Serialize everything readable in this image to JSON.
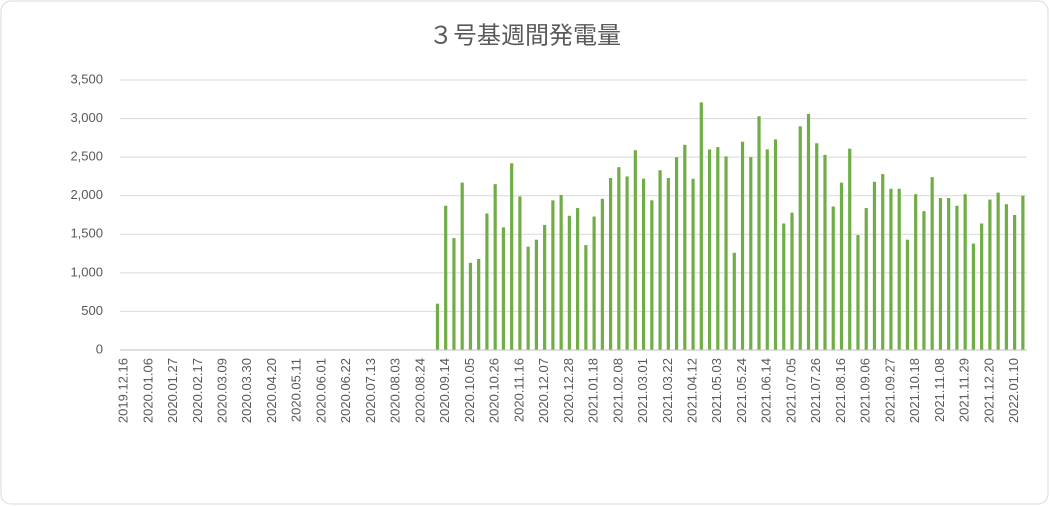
{
  "chart_data": {
    "type": "bar",
    "title": "３号基週間発電量",
    "categories": [
      "2019.12.16",
      null,
      null,
      "2020.01.06",
      null,
      null,
      "2020.01.27",
      null,
      null,
      "2020.02.17",
      null,
      null,
      "2020.03.09",
      null,
      null,
      "2020.03.30",
      null,
      null,
      "2020.04.20",
      null,
      null,
      "2020.05.11",
      null,
      null,
      "2020.06.01",
      null,
      null,
      "2020.06.22",
      null,
      null,
      "2020.07.13",
      null,
      null,
      "2020.08.03",
      null,
      null,
      "2020.08.24",
      null,
      null,
      "2020.09.14",
      null,
      null,
      "2020.10.05",
      null,
      null,
      "2020.10.26",
      null,
      null,
      "2020.11.16",
      null,
      null,
      "2020.12.07",
      null,
      null,
      "2020.12.28",
      null,
      null,
      "2021.01.18",
      null,
      null,
      "2021.02.08",
      null,
      null,
      "2021.03.01",
      null,
      null,
      "2021.03.22",
      null,
      null,
      "2021.04.12",
      null,
      null,
      "2021.05.03",
      null,
      null,
      "2021.05.24",
      null,
      null,
      "2021.06.14",
      null,
      null,
      "2021.07.05",
      null,
      null,
      "2021.07.26",
      null,
      null,
      "2021.08.16",
      null,
      null,
      "2021.09.06",
      null,
      null,
      "2021.09.27",
      null,
      null,
      "2021.10.18",
      null,
      null,
      "2021.11.08",
      null,
      null,
      "2021.11.29",
      null,
      null,
      "2021.12.20",
      null,
      null,
      "2022.01.10",
      null
    ],
    "values": [
      null,
      null,
      null,
      null,
      null,
      null,
      null,
      null,
      null,
      null,
      null,
      null,
      null,
      null,
      null,
      null,
      null,
      null,
      null,
      null,
      null,
      null,
      null,
      null,
      null,
      null,
      null,
      null,
      null,
      null,
      null,
      null,
      null,
      null,
      null,
      null,
      null,
      null,
      600,
      1870,
      1450,
      2170,
      1130,
      1180,
      1770,
      2150,
      1590,
      2420,
      1990,
      1340,
      1430,
      1620,
      1940,
      2010,
      1740,
      1840,
      1360,
      1730,
      1960,
      2230,
      2370,
      2250,
      2590,
      2220,
      1940,
      2330,
      2230,
      2500,
      2660,
      2220,
      3210,
      2600,
      2630,
      2510,
      1260,
      2700,
      2500,
      3030,
      2600,
      2730,
      1640,
      1780,
      2900,
      3060,
      2680,
      2530,
      1860,
      2170,
      2610,
      1490,
      1840,
      2180,
      2280,
      2090,
      2090,
      1430,
      2020,
      1800,
      2240,
      1970,
      1970,
      1870,
      2020,
      1380,
      1640,
      1950,
      2040,
      1890,
      1750,
      2000
    ],
    "color": "#70ad47",
    "ylim": [
      0,
      3500
    ],
    "yticks": [
      0,
      500,
      {
        "value": 1000,
        "label": "1,000"
      },
      {
        "value": 1500,
        "label": "1,500"
      },
      {
        "value": 2000,
        "label": "2,000"
      },
      {
        "value": 2500,
        "label": "2,500"
      },
      {
        "value": 3000,
        "label": "3,000"
      },
      {
        "value": 3500,
        "label": "3,500"
      }
    ],
    "grid": true
  }
}
